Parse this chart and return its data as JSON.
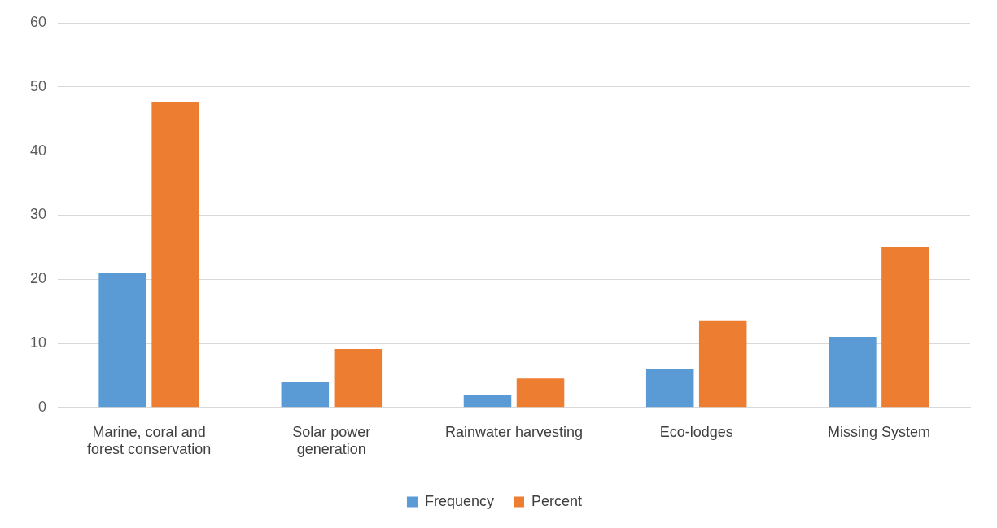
{
  "chart_data": {
    "type": "bar",
    "categories": [
      "Marine, coral and forest conservation",
      "Solar power generation",
      "Rainwater harvesting",
      "Eco-lodges",
      "Missing System"
    ],
    "series": [
      {
        "name": "Frequency",
        "color": "#5b9bd5",
        "values": [
          21,
          4,
          2,
          6,
          11
        ]
      },
      {
        "name": "Percent",
        "color": "#ed7d31",
        "values": [
          47.7,
          9.1,
          4.5,
          13.6,
          25.0
        ]
      }
    ],
    "ylim": [
      0,
      60
    ],
    "yticks": [
      0,
      10,
      20,
      30,
      40,
      50,
      60
    ],
    "grid": "y",
    "legend": "bottom"
  }
}
